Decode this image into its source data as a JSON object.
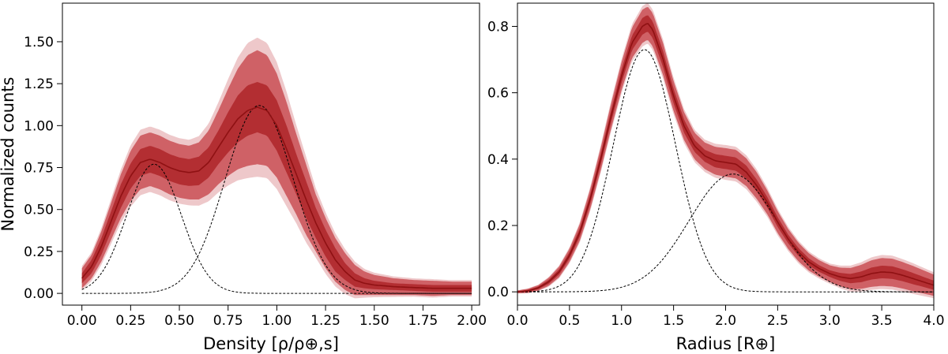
{
  "chart_data": [
    {
      "type": "line",
      "panel": "left",
      "xlabel": "Density [ρ/ρ⊕,s]",
      "ylabel": "Normalized counts",
      "xlim": [
        -0.1,
        2.04
      ],
      "ylim": [
        -0.07,
        1.73
      ],
      "xticks": [
        0.0,
        0.25,
        0.5,
        0.75,
        1.0,
        1.25,
        1.5,
        1.75,
        2.0
      ],
      "xtick_labels": [
        "0.00",
        "0.25",
        "0.50",
        "0.75",
        "1.00",
        "1.25",
        "1.50",
        "1.75",
        "2.00"
      ],
      "yticks": [
        0.0,
        0.25,
        0.5,
        0.75,
        1.0,
        1.25,
        1.5
      ],
      "ytick_labels": [
        "0.00",
        "0.25",
        "0.50",
        "0.75",
        "1.00",
        "1.25",
        "1.50"
      ],
      "grid": false,
      "median": {
        "x": [
          0.0,
          0.05,
          0.1,
          0.15,
          0.2,
          0.25,
          0.3,
          0.35,
          0.4,
          0.45,
          0.5,
          0.55,
          0.6,
          0.65,
          0.7,
          0.75,
          0.8,
          0.85,
          0.9,
          0.95,
          1.0,
          1.05,
          1.1,
          1.15,
          1.2,
          1.25,
          1.3,
          1.35,
          1.4,
          1.45,
          1.5,
          1.6,
          1.7,
          1.8,
          1.9,
          2.0
        ],
        "y": [
          0.09,
          0.16,
          0.28,
          0.43,
          0.58,
          0.7,
          0.78,
          0.8,
          0.78,
          0.75,
          0.73,
          0.72,
          0.73,
          0.78,
          0.87,
          0.96,
          1.04,
          1.09,
          1.11,
          1.09,
          1.0,
          0.86,
          0.71,
          0.56,
          0.42,
          0.3,
          0.2,
          0.13,
          0.08,
          0.06,
          0.05,
          0.04,
          0.035,
          0.03,
          0.03,
          0.03
        ]
      },
      "band_inner_halfwidth": [
        0.03,
        0.04,
        0.05,
        0.06,
        0.07,
        0.075,
        0.08,
        0.08,
        0.08,
        0.08,
        0.08,
        0.08,
        0.085,
        0.09,
        0.1,
        0.12,
        0.14,
        0.15,
        0.15,
        0.15,
        0.15,
        0.14,
        0.12,
        0.11,
        0.09,
        0.08,
        0.07,
        0.05,
        0.04,
        0.03,
        0.025,
        0.02,
        0.02,
        0.02,
        0.02,
        0.02
      ],
      "band_outer_halfwidth": [
        0.06,
        0.07,
        0.09,
        0.11,
        0.13,
        0.15,
        0.16,
        0.16,
        0.16,
        0.16,
        0.16,
        0.16,
        0.17,
        0.19,
        0.22,
        0.26,
        0.3,
        0.33,
        0.34,
        0.33,
        0.31,
        0.28,
        0.24,
        0.21,
        0.17,
        0.15,
        0.13,
        0.11,
        0.09,
        0.07,
        0.06,
        0.05,
        0.045,
        0.045,
        0.04,
        0.04
      ],
      "components": [
        {
          "mean": 0.37,
          "sigma": 0.14,
          "amplitude": 0.77
        },
        {
          "mean": 0.91,
          "sigma": 0.175,
          "amplitude": 1.12
        }
      ],
      "colors": {
        "outer": "#cf6166",
        "inner": "#b32e32",
        "median": "#8f1113",
        "component": "#000000"
      }
    },
    {
      "type": "line",
      "panel": "right",
      "xlabel": "Radius [R⊕]",
      "ylabel": "",
      "xlim": [
        0.0,
        4.0
      ],
      "ylim": [
        -0.04,
        0.87
      ],
      "xticks": [
        0.0,
        0.5,
        1.0,
        1.5,
        2.0,
        2.5,
        3.0,
        3.5,
        4.0
      ],
      "xtick_labels": [
        "0.0",
        "0.5",
        "1.0",
        "1.5",
        "2.0",
        "2.5",
        "3.0",
        "3.5",
        "4.0"
      ],
      "yticks": [
        0.0,
        0.2,
        0.4,
        0.6,
        0.8
      ],
      "ytick_labels": [
        "0.0",
        "0.2",
        "0.4",
        "0.6",
        "0.8"
      ],
      "grid": false,
      "median": {
        "x": [
          0.0,
          0.1,
          0.2,
          0.3,
          0.4,
          0.5,
          0.6,
          0.7,
          0.8,
          0.9,
          1.0,
          1.1,
          1.2,
          1.25,
          1.3,
          1.4,
          1.5,
          1.6,
          1.7,
          1.8,
          1.9,
          2.0,
          2.1,
          2.2,
          2.3,
          2.4,
          2.5,
          2.6,
          2.7,
          2.8,
          2.9,
          3.0,
          3.1,
          3.2,
          3.3,
          3.4,
          3.5,
          3.6,
          3.7,
          3.8,
          3.9,
          4.0
        ],
        "y": [
          0.0,
          0.003,
          0.012,
          0.03,
          0.06,
          0.11,
          0.18,
          0.28,
          0.4,
          0.53,
          0.65,
          0.75,
          0.8,
          0.81,
          0.79,
          0.7,
          0.59,
          0.5,
          0.44,
          0.41,
          0.395,
          0.39,
          0.385,
          0.36,
          0.32,
          0.27,
          0.21,
          0.16,
          0.12,
          0.09,
          0.07,
          0.055,
          0.045,
          0.04,
          0.045,
          0.055,
          0.06,
          0.058,
          0.05,
          0.04,
          0.03,
          0.02
        ]
      },
      "band_inner_halfwidth": [
        0.002,
        0.003,
        0.004,
        0.006,
        0.008,
        0.01,
        0.012,
        0.014,
        0.016,
        0.018,
        0.02,
        0.022,
        0.025,
        0.025,
        0.025,
        0.024,
        0.022,
        0.02,
        0.018,
        0.018,
        0.02,
        0.02,
        0.02,
        0.02,
        0.018,
        0.016,
        0.015,
        0.013,
        0.012,
        0.011,
        0.01,
        0.01,
        0.012,
        0.014,
        0.016,
        0.018,
        0.019,
        0.019,
        0.018,
        0.017,
        0.015,
        0.014
      ],
      "band_outer_halfwidth": [
        0.004,
        0.006,
        0.008,
        0.012,
        0.016,
        0.02,
        0.025,
        0.03,
        0.034,
        0.038,
        0.042,
        0.046,
        0.05,
        0.05,
        0.05,
        0.048,
        0.045,
        0.042,
        0.04,
        0.04,
        0.042,
        0.043,
        0.043,
        0.042,
        0.04,
        0.036,
        0.033,
        0.03,
        0.028,
        0.026,
        0.025,
        0.025,
        0.028,
        0.032,
        0.036,
        0.04,
        0.042,
        0.042,
        0.04,
        0.038,
        0.035,
        0.032
      ],
      "components": [
        {
          "mean": 1.22,
          "sigma": 0.3,
          "amplitude": 0.73
        },
        {
          "mean": 2.07,
          "sigma": 0.42,
          "amplitude": 0.355
        }
      ],
      "colors": {
        "outer": "#cf6166",
        "inner": "#b32e32",
        "median": "#8f1113",
        "component": "#000000"
      }
    }
  ]
}
